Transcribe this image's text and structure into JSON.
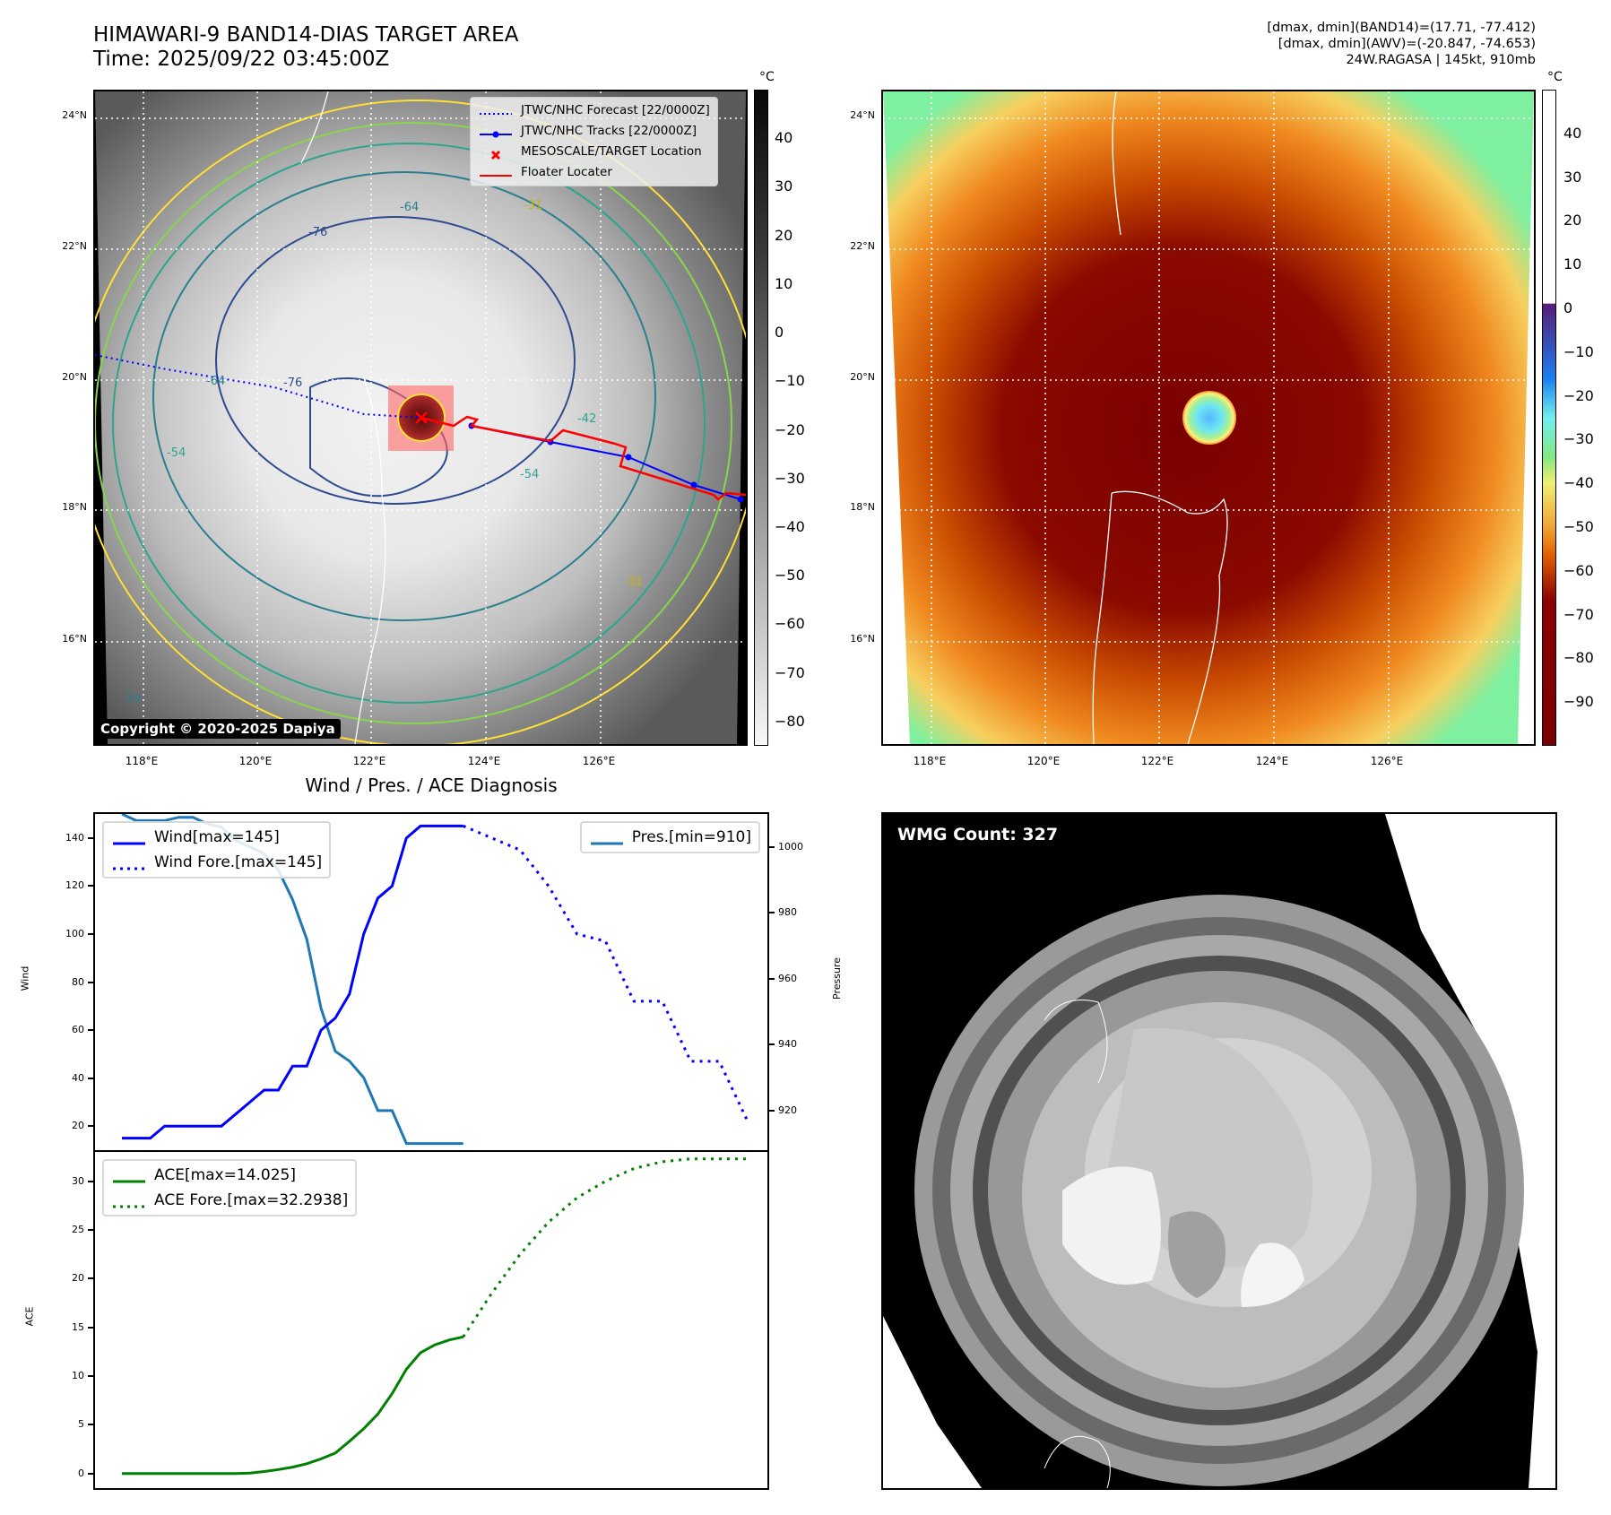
{
  "header": {
    "title_line1": "HIMAWARI-9 BAND14-DIAS TARGET AREA",
    "title_line2": "Time: 2025/09/22 03:45:00Z",
    "stats_line1": "[dmax, dmin](BAND14)=(17.71, -77.412)",
    "stats_line2": "[dmax, dmin](AWV)=(-20.847, -74.653)",
    "stats_line3": "24W.RAGASA | 145kt, 910mb"
  },
  "map_common": {
    "lat_labels": [
      "24°N",
      "22°N",
      "20°N",
      "18°N",
      "16°N"
    ],
    "lon_labels": [
      "118°E",
      "120°E",
      "122°E",
      "124°E",
      "126°E"
    ]
  },
  "map_left": {
    "legend": [
      {
        "label": "JTWC/NHC Forecast [22/0000Z]",
        "style": "dotted",
        "color": "#0000ff"
      },
      {
        "label": "JTWC/NHC Tracks [22/0000Z]",
        "style": "line-marker",
        "color": "#0000ff"
      },
      {
        "label": "MESOSCALE/TARGET Location",
        "style": "x-marker",
        "color": "#ff0000"
      },
      {
        "label": "Floater Locater",
        "style": "line",
        "color": "#ff0000"
      }
    ],
    "contour_labels": [
      "-76",
      "-64",
      "-54",
      "-31",
      "-42",
      "-76",
      "-54",
      "-64",
      "-54",
      "-31"
    ],
    "copyright": "Copyright © 2020-2025 Dapiya",
    "colorbar": {
      "unit": "°C",
      "ticks": [
        "40",
        "30",
        "20",
        "10",
        "0",
        "−10",
        "−20",
        "−30",
        "−40",
        "−50",
        "−60",
        "−70",
        "−80"
      ],
      "range": [
        -85,
        50
      ]
    }
  },
  "map_right": {
    "colorbar": {
      "unit": "°C",
      "ticks": [
        "40",
        "30",
        "20",
        "10",
        "0",
        "−10",
        "−20",
        "−30",
        "−40",
        "−50",
        "−60",
        "−70",
        "−80",
        "−90"
      ],
      "range": [
        -100,
        50
      ]
    }
  },
  "diagnosis_title": "Wind / Pres. / ACE Diagnosis",
  "wmg": {
    "label": "WMG Count: 327"
  },
  "colors": {
    "wind": "#0000ff",
    "pressure": "#1f77b4",
    "ace": "#008000",
    "track": "#0000ff",
    "floater": "#ff0000"
  },
  "chart_data": [
    {
      "type": "line",
      "title": "Wind / Pres. / ACE Diagnosis",
      "ylabel": "Wind",
      "y2label": "Pressure",
      "ylim": [
        10,
        150
      ],
      "y2lim": [
        908,
        1010
      ],
      "yticks": [
        "140",
        "120",
        "100",
        "80",
        "60",
        "40",
        "20"
      ],
      "y2ticks": [
        "1000",
        "980",
        "960",
        "940",
        "920"
      ],
      "x": [
        0,
        1,
        2,
        3,
        4,
        5,
        6,
        7,
        8,
        9,
        10,
        11,
        12,
        13,
        14,
        15,
        16,
        17,
        18,
        19,
        20,
        21,
        22,
        23,
        24,
        25,
        26,
        27,
        28,
        29,
        30,
        31,
        32,
        33,
        34,
        35,
        36,
        37,
        38,
        39,
        40,
        41,
        42,
        43,
        44
      ],
      "series": [
        {
          "name": "Wind[max=145]",
          "axis": "left",
          "style": "solid",
          "x": [
            0,
            1,
            2,
            3,
            4,
            5,
            6,
            7,
            8,
            9,
            10,
            11,
            12,
            13,
            14,
            15,
            16,
            17,
            18,
            19,
            20,
            21,
            22,
            23,
            24
          ],
          "values": [
            15,
            15,
            15,
            20,
            20,
            20,
            20,
            20,
            25,
            30,
            35,
            35,
            45,
            45,
            60,
            65,
            75,
            100,
            115,
            120,
            140,
            145,
            145,
            145,
            145
          ]
        },
        {
          "name": "Wind Fore.[max=145]",
          "axis": "left",
          "style": "dotted",
          "x": [
            24,
            26,
            28,
            30,
            32,
            34,
            36,
            38,
            40,
            42,
            44
          ],
          "values": [
            145,
            140,
            135,
            120,
            100,
            97,
            72,
            72,
            47,
            47,
            22
          ]
        },
        {
          "name": "Pres.[min=910]",
          "axis": "right",
          "style": "solid",
          "x": [
            0,
            1,
            2,
            3,
            4,
            5,
            6,
            7,
            8,
            9,
            10,
            11,
            12,
            13,
            14,
            15,
            16,
            17,
            18,
            19,
            20,
            21,
            22,
            23,
            24
          ],
          "values": [
            1010,
            1008,
            1008,
            1008,
            1009,
            1009,
            1007,
            1006,
            1002,
            1000,
            998,
            993,
            984,
            972,
            951,
            938,
            935,
            930,
            920,
            920,
            910,
            910,
            910,
            910,
            910
          ]
        }
      ]
    },
    {
      "type": "line",
      "ylabel": "ACE",
      "ylim": [
        -1.5,
        33
      ],
      "yticks": [
        "30",
        "25",
        "20",
        "15",
        "10",
        "5",
        "0"
      ],
      "series": [
        {
          "name": "ACE[max=14.025]",
          "style": "solid",
          "x": [
            0,
            1,
            2,
            3,
            4,
            5,
            6,
            7,
            8,
            9,
            10,
            11,
            12,
            13,
            14,
            15,
            16,
            17,
            18,
            19,
            20,
            21,
            22,
            23,
            24
          ],
          "values": [
            0,
            0,
            0,
            0,
            0,
            0,
            0,
            0,
            0,
            0.05,
            0.2,
            0.4,
            0.65,
            1.0,
            1.5,
            2.1,
            3.3,
            4.6,
            6.1,
            8.2,
            10.7,
            12.4,
            13.2,
            13.7,
            14.025
          ]
        },
        {
          "name": "ACE Fore.[max=32.2938]",
          "style": "dotted",
          "x": [
            24,
            26,
            28,
            30,
            32,
            34,
            36,
            38,
            40,
            42,
            44
          ],
          "values": [
            14.025,
            18.5,
            22.5,
            25.8,
            28.3,
            30.0,
            31.3,
            32.0,
            32.29,
            32.29,
            32.29
          ]
        }
      ]
    }
  ]
}
